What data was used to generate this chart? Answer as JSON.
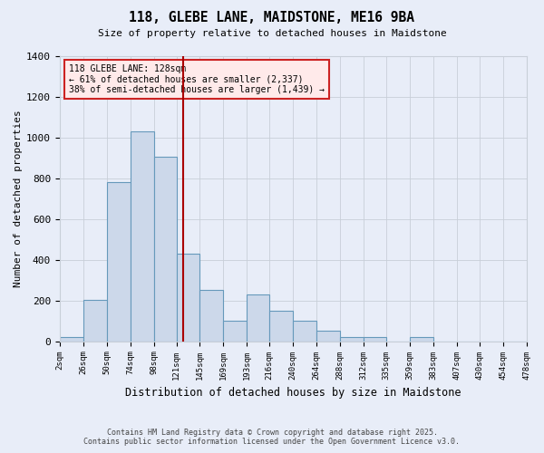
{
  "title1": "118, GLEBE LANE, MAIDSTONE, ME16 9BA",
  "title2": "Size of property relative to detached houses in Maidstone",
  "xlabel": "Distribution of detached houses by size in Maidstone",
  "ylabel": "Number of detached properties",
  "footnote1": "Contains HM Land Registry data © Crown copyright and database right 2025.",
  "footnote2": "Contains public sector information licensed under the Open Government Licence v3.0.",
  "annotation_line1": "118 GLEBE LANE: 128sqm",
  "annotation_line2": "← 61% of detached houses are smaller (2,337)",
  "annotation_line3": "38% of semi-detached houses are larger (1,439) →",
  "bar_edges": [
    2,
    26,
    50,
    74,
    98,
    121,
    145,
    169,
    193,
    216,
    240,
    264,
    288,
    312,
    335,
    359,
    383,
    407,
    430,
    454,
    478
  ],
  "bar_heights": [
    20,
    205,
    780,
    1030,
    905,
    430,
    250,
    100,
    230,
    150,
    100,
    50,
    20,
    20,
    0,
    20,
    0,
    0,
    0,
    0
  ],
  "property_size": 128,
  "bar_fill": "#ccd8ea",
  "bar_edge": "#6699bb",
  "vline_color": "#aa0000",
  "grid_color": "#c8cfd8",
  "bg_color": "#e8edf8",
  "annotation_box_color": "#ffeaea",
  "annotation_border_color": "#cc2222",
  "ylim": [
    0,
    1400
  ],
  "yticks": [
    0,
    200,
    400,
    600,
    800,
    1000,
    1200,
    1400
  ]
}
